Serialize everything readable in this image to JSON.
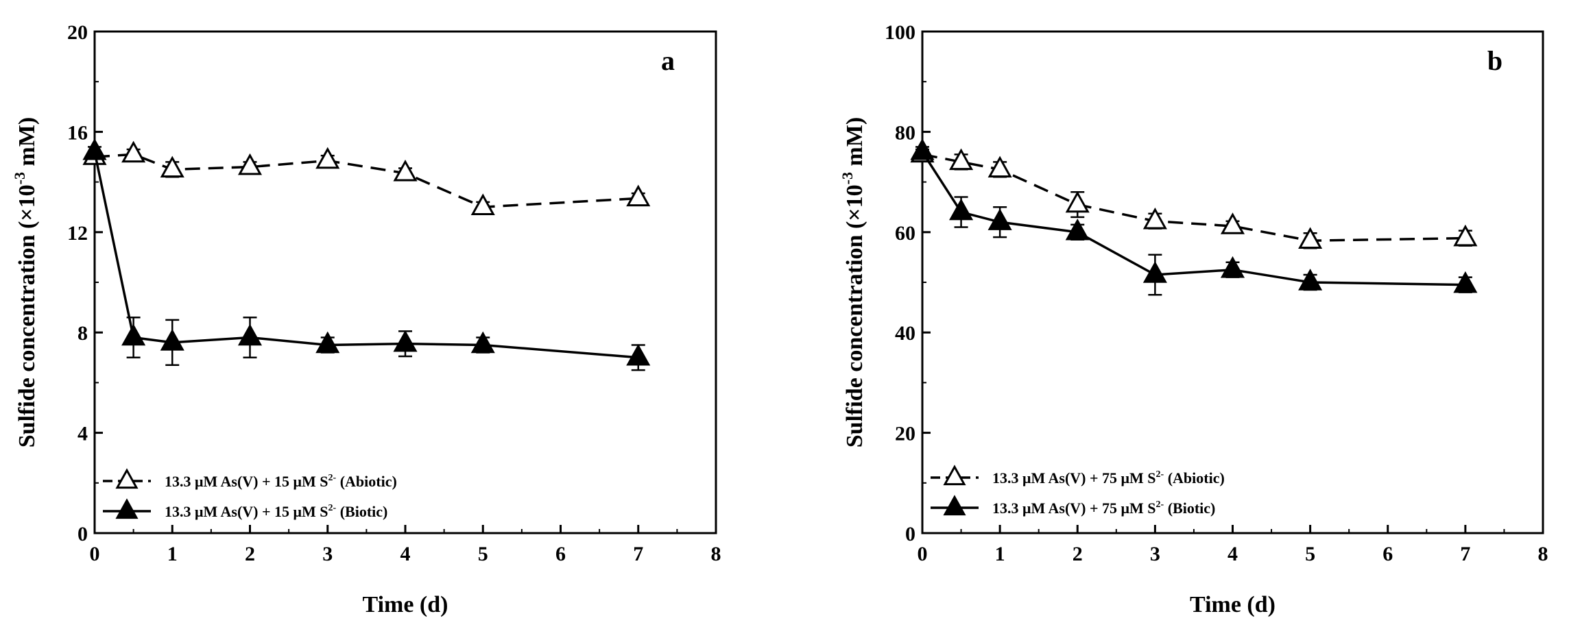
{
  "chart_data": [
    {
      "type": "line",
      "panel_label": "a",
      "xlabel": "Time (d)",
      "ylabel": {
        "main": "Sulfide concentration (×10",
        "sup": "-3",
        "unit": " mM)"
      },
      "xlim": [
        0,
        8
      ],
      "ylim": [
        0,
        20
      ],
      "xticks": [
        "0",
        "1",
        "2",
        "3",
        "4",
        "5",
        "6",
        "7",
        "8"
      ],
      "yticks": [
        "0",
        "4",
        "8",
        "12",
        "16",
        "20"
      ],
      "legend_position": "bottom-left",
      "series": [
        {
          "name": "abiotic",
          "legend": {
            "pre": "13.3 μM As(V) + 15 μM S",
            "sup": "2-",
            "post": " (Abiotic)"
          },
          "marker": "open-triangle",
          "line": "dashed",
          "x": [
            0,
            0.5,
            1,
            2,
            3,
            4,
            5,
            7
          ],
          "y": [
            15.0,
            15.1,
            14.5,
            14.6,
            14.85,
            14.35,
            13.0,
            13.35
          ],
          "err": [
            0.2,
            0.2,
            0.3,
            0.2,
            0.2,
            0.2,
            0.2,
            0.2
          ]
        },
        {
          "name": "biotic",
          "legend": {
            "pre": "13.3 μM As(V) + 15 μM S",
            "sup": "2-",
            "post": " (Biotic)"
          },
          "marker": "filled-triangle",
          "line": "solid",
          "x": [
            0,
            0.5,
            1,
            2,
            3,
            4,
            5,
            7
          ],
          "y": [
            15.2,
            7.8,
            7.6,
            7.8,
            7.5,
            7.55,
            7.5,
            7.0
          ],
          "err": [
            0.2,
            0.8,
            0.9,
            0.8,
            0.3,
            0.5,
            0.3,
            0.5
          ]
        }
      ]
    },
    {
      "type": "line",
      "panel_label": "b",
      "xlabel": "Time (d)",
      "ylabel": {
        "main": "Sulfide concentration (×10",
        "sup": "-3",
        "unit": " mM)"
      },
      "xlim": [
        0,
        8
      ],
      "ylim": [
        0,
        100
      ],
      "xticks": [
        "0",
        "1",
        "2",
        "3",
        "4",
        "5",
        "6",
        "7",
        "8"
      ],
      "yticks": [
        "0",
        "20",
        "40",
        "60",
        "80",
        "100"
      ],
      "legend_position": "bottom-left",
      "series": [
        {
          "name": "abiotic",
          "legend": {
            "pre": "13.3 μM As(V) + 75 μM S",
            "sup": "2-",
            "post": " (Abiotic)"
          },
          "marker": "open-triangle",
          "line": "dashed",
          "x": [
            0,
            0.5,
            1,
            2,
            3,
            4,
            5,
            7
          ],
          "y": [
            75.5,
            74.0,
            72.5,
            65.5,
            62.2,
            61.2,
            58.3,
            58.8
          ],
          "err": [
            1.0,
            1.5,
            1.5,
            2.5,
            1.5,
            1.0,
            1.5,
            1.5
          ]
        },
        {
          "name": "biotic",
          "legend": {
            "pre": "13.3 μM As(V) + 75 μM S",
            "sup": "2-",
            "post": " (Biotic)"
          },
          "marker": "filled-triangle",
          "line": "solid",
          "x": [
            0,
            0.5,
            1,
            2,
            3,
            4,
            5,
            7
          ],
          "y": [
            76.0,
            64.0,
            62.0,
            60.0,
            51.5,
            52.5,
            50.0,
            49.5
          ],
          "err": [
            1.0,
            3.0,
            3.0,
            1.5,
            4.0,
            1.5,
            1.5,
            1.5
          ]
        }
      ]
    }
  ]
}
